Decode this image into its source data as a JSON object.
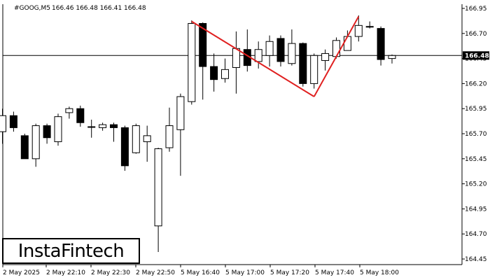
{
  "header": {
    "symbol": "#GOOG,M5",
    "ohlc": "166.46 166.48 166.41 166.48"
  },
  "current_price_label": "166.48",
  "logo": {
    "text": "InstaFintech"
  },
  "colors": {
    "pattern": "#e02020",
    "bull_fill": "#ffffff",
    "bear_fill": "#000000",
    "candle_line": "#000000",
    "price_line": "#000000",
    "price_tag_bg": "#000000"
  },
  "chart_data": {
    "type": "candlestick",
    "title": "",
    "ylim": [
      164.4,
      166.98
    ],
    "y_ticks": [
      "166.95",
      "166.70",
      "166.45",
      "166.20",
      "165.95",
      "165.70",
      "165.45",
      "165.20",
      "164.95",
      "164.70",
      "164.45"
    ],
    "x_tick_labels": [
      "2 May 2025",
      "2 May 22:10",
      "2 May 22:30",
      "2 May 22:50",
      "5 May 16:40",
      "5 May 17:00",
      "5 May 17:20",
      "5 May 17:40",
      "5 May 18:00"
    ],
    "current_price": 166.48,
    "candles": [
      {
        "o": 165.72,
        "h": 165.95,
        "l": 165.6,
        "c": 165.88
      },
      {
        "o": 165.88,
        "h": 165.92,
        "l": 165.72,
        "c": 165.76
      },
      {
        "o": 165.68,
        "h": 165.7,
        "l": 165.45,
        "c": 165.45
      },
      {
        "o": 165.45,
        "h": 165.8,
        "l": 165.37,
        "c": 165.78
      },
      {
        "o": 165.78,
        "h": 165.8,
        "l": 165.6,
        "c": 165.66
      },
      {
        "o": 165.62,
        "h": 165.9,
        "l": 165.58,
        "c": 165.87
      },
      {
        "o": 165.91,
        "h": 165.97,
        "l": 165.85,
        "c": 165.95
      },
      {
        "o": 165.95,
        "h": 165.98,
        "l": 165.77,
        "c": 165.81
      },
      {
        "o": 165.77,
        "h": 165.84,
        "l": 165.66,
        "c": 165.77
      },
      {
        "o": 165.76,
        "h": 165.81,
        "l": 165.73,
        "c": 165.79
      },
      {
        "o": 165.79,
        "h": 165.81,
        "l": 165.62,
        "c": 165.76
      },
      {
        "o": 165.76,
        "h": 165.78,
        "l": 165.33,
        "c": 165.38
      },
      {
        "o": 165.51,
        "h": 165.8,
        "l": 165.5,
        "c": 165.78
      },
      {
        "o": 165.62,
        "h": 165.78,
        "l": 165.42,
        "c": 165.68
      },
      {
        "o": 164.78,
        "h": 165.56,
        "l": 164.52,
        "c": 165.55
      },
      {
        "o": 165.56,
        "h": 165.96,
        "l": 165.52,
        "c": 165.78
      },
      {
        "o": 165.74,
        "h": 166.1,
        "l": 165.28,
        "c": 166.07
      },
      {
        "o": 166.02,
        "h": 166.83,
        "l": 165.99,
        "c": 166.8
      },
      {
        "o": 166.8,
        "h": 166.81,
        "l": 166.04,
        "c": 166.37
      },
      {
        "o": 166.37,
        "h": 166.5,
        "l": 166.12,
        "c": 166.24
      },
      {
        "o": 166.25,
        "h": 166.45,
        "l": 166.21,
        "c": 166.34
      },
      {
        "o": 166.36,
        "h": 166.72,
        "l": 166.1,
        "c": 166.55
      },
      {
        "o": 166.54,
        "h": 166.74,
        "l": 166.32,
        "c": 166.38
      },
      {
        "o": 166.42,
        "h": 166.62,
        "l": 166.35,
        "c": 166.54
      },
      {
        "o": 166.48,
        "h": 166.68,
        "l": 166.37,
        "c": 166.62
      },
      {
        "o": 166.65,
        "h": 166.68,
        "l": 166.37,
        "c": 166.42
      },
      {
        "o": 166.4,
        "h": 166.74,
        "l": 166.38,
        "c": 166.6
      },
      {
        "o": 166.6,
        "h": 166.61,
        "l": 166.17,
        "c": 166.2
      },
      {
        "o": 166.2,
        "h": 166.5,
        "l": 166.15,
        "c": 166.48
      },
      {
        "o": 166.43,
        "h": 166.54,
        "l": 166.33,
        "c": 166.5
      },
      {
        "o": 166.47,
        "h": 166.66,
        "l": 166.45,
        "c": 166.63
      },
      {
        "o": 166.53,
        "h": 166.73,
        "l": 166.55,
        "c": 166.67
      },
      {
        "o": 166.67,
        "h": 166.88,
        "l": 166.62,
        "c": 166.78
      },
      {
        "o": 166.77,
        "h": 166.82,
        "l": 166.75,
        "c": 166.77
      },
      {
        "o": 166.75,
        "h": 166.77,
        "l": 166.38,
        "c": 166.44
      },
      {
        "o": 166.45,
        "h": 166.49,
        "l": 166.4,
        "c": 166.48
      }
    ],
    "pattern_line": [
      {
        "candle": 17.0,
        "price": 166.82
      },
      {
        "candle": 28.0,
        "price": 166.07
      },
      {
        "candle": 32.0,
        "price": 166.87
      }
    ]
  }
}
